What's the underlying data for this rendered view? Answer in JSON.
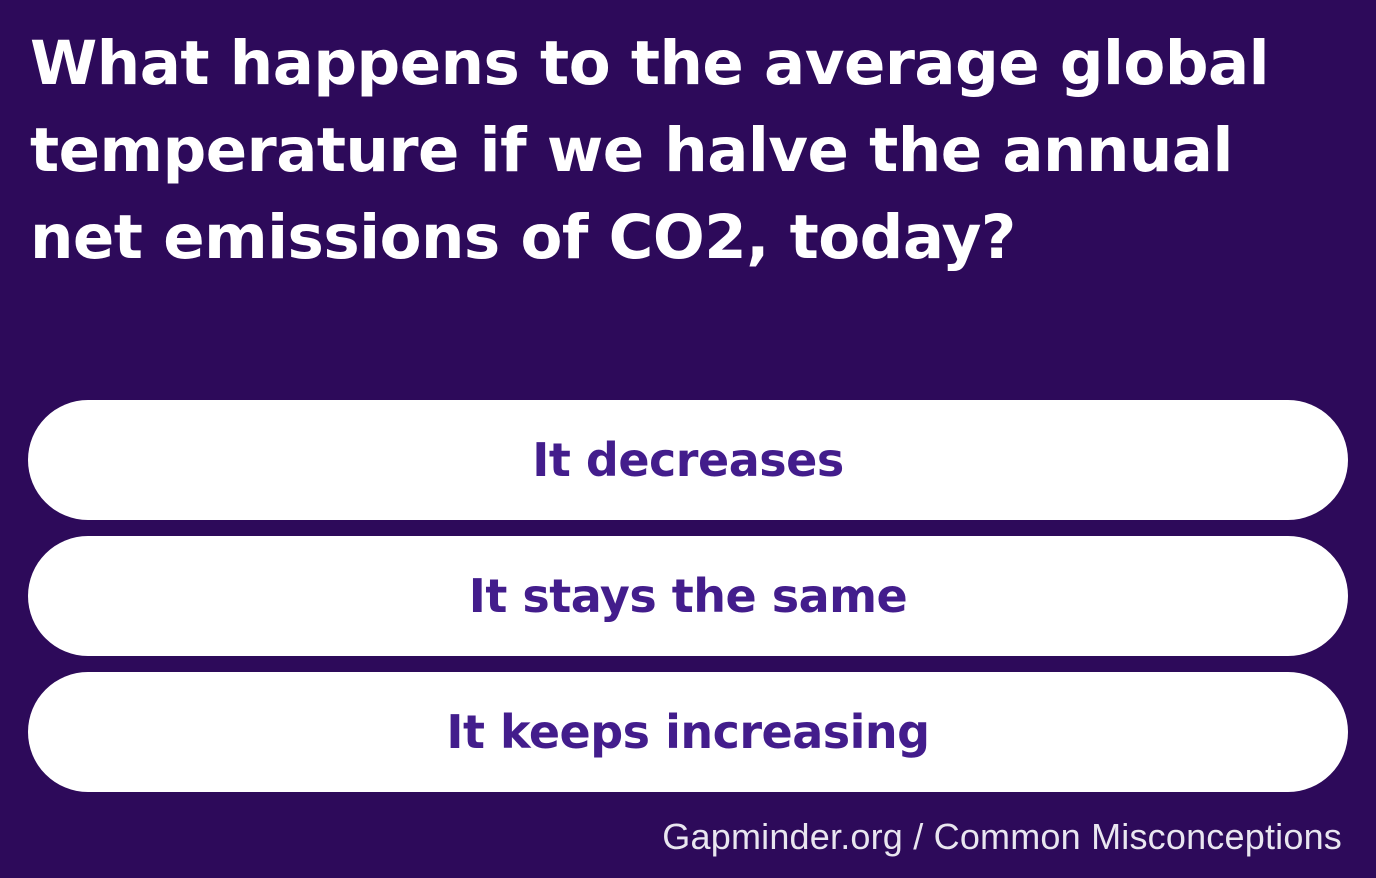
{
  "question": {
    "text": "What happens to the average global\ntemperature if we halve the annual\nnet emissions of CO2, today?"
  },
  "options": [
    {
      "label": "It decreases"
    },
    {
      "label": "It stays the same"
    },
    {
      "label": "It keeps increasing"
    }
  ],
  "footer": {
    "credit": "Gapminder.org / Common Misconceptions"
  },
  "colors": {
    "background": "#2d0a5a",
    "option_background": "#ffffff",
    "option_text": "#431d8c",
    "question_text": "#ffffff"
  }
}
